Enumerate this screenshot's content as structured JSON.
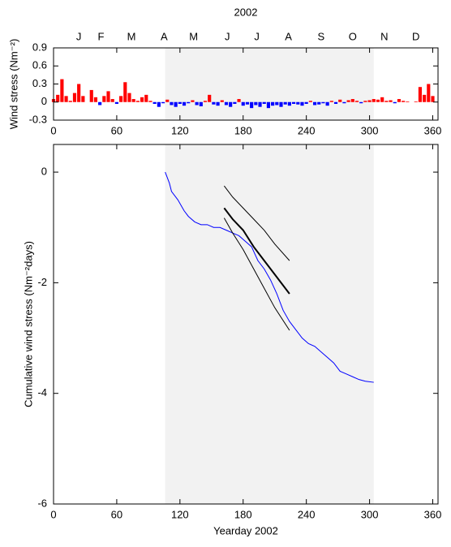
{
  "chart_data": [
    {
      "type": "bar",
      "title": "2002",
      "ylabel": "Wind stress (Nm⁻²)",
      "pos_color": "#ff0000",
      "neg_color": "#0000ff",
      "shade": [
        106,
        304
      ],
      "shade_color": "#f2f2f2",
      "xlim": [
        0,
        365
      ],
      "xticks": [
        0,
        60,
        120,
        180,
        240,
        300,
        360
      ],
      "ylim": [
        -0.3,
        0.9
      ],
      "yticks": [
        -0.3,
        0,
        0.3,
        0.6,
        0.9
      ],
      "month_ticks": [
        {
          "value": 24,
          "label": "J"
        },
        {
          "value": 45,
          "label": "F"
        },
        {
          "value": 74,
          "label": "M"
        },
        {
          "value": 105,
          "label": "A"
        },
        {
          "value": 133,
          "label": "M"
        },
        {
          "value": 165,
          "label": "J"
        },
        {
          "value": 193,
          "label": "J"
        },
        {
          "value": 223,
          "label": "A"
        },
        {
          "value": 254,
          "label": "S"
        },
        {
          "value": 284,
          "label": "O"
        },
        {
          "value": 314,
          "label": "N"
        },
        {
          "value": 344,
          "label": "D"
        }
      ],
      "x": [
        0,
        4,
        8,
        12,
        16,
        20,
        24,
        28,
        32,
        36,
        40,
        44,
        48,
        52,
        56,
        60,
        64,
        68,
        72,
        76,
        80,
        84,
        88,
        92,
        96,
        100,
        104,
        108,
        112,
        116,
        120,
        124,
        128,
        132,
        136,
        140,
        144,
        148,
        152,
        156,
        160,
        164,
        168,
        172,
        176,
        180,
        184,
        188,
        192,
        196,
        200,
        204,
        208,
        212,
        216,
        220,
        224,
        228,
        232,
        236,
        240,
        244,
        248,
        252,
        256,
        260,
        264,
        268,
        272,
        276,
        280,
        284,
        288,
        292,
        296,
        300,
        304,
        308,
        312,
        316,
        320,
        324,
        328,
        332,
        336,
        340,
        344,
        348,
        352,
        356,
        360
      ],
      "values": [
        0.05,
        0.12,
        0.38,
        0.1,
        0.02,
        0.15,
        0.3,
        0.1,
        0.0,
        0.2,
        0.08,
        -0.05,
        0.1,
        0.18,
        0.05,
        -0.03,
        0.1,
        0.33,
        0.15,
        0.05,
        0.02,
        0.08,
        0.12,
        0.02,
        -0.03,
        -0.08,
        -0.02,
        0.04,
        -0.05,
        -0.08,
        -0.03,
        -0.06,
        -0.02,
        0.03,
        -0.05,
        -0.07,
        0.02,
        0.12,
        -0.04,
        -0.06,
        0.03,
        -0.05,
        -0.08,
        -0.03,
        0.05,
        -0.06,
        -0.04,
        -0.1,
        -0.05,
        -0.08,
        -0.03,
        -0.1,
        -0.06,
        -0.05,
        -0.08,
        -0.04,
        -0.06,
        -0.03,
        -0.04,
        -0.06,
        -0.03,
        0.02,
        -0.05,
        -0.04,
        -0.02,
        -0.06,
        0.02,
        -0.03,
        0.04,
        -0.02,
        0.03,
        0.05,
        0.02,
        -0.02,
        0.02,
        0.03,
        0.05,
        0.04,
        0.08,
        0.02,
        0.03,
        -0.02,
        0.05,
        0.02,
        0.01,
        0.0,
        0.01,
        0.25,
        0.12,
        0.3,
        0.1
      ]
    },
    {
      "type": "line",
      "xlabel": "Yearday 2002",
      "ylabel": "Cumulative wind stress (Nm⁻²days)",
      "shade": [
        106,
        304
      ],
      "shade_color": "#f2f2f2",
      "xlim": [
        0,
        365
      ],
      "xticks": [
        0,
        60,
        120,
        180,
        240,
        300,
        360
      ],
      "ylim": [
        -6,
        0.5
      ],
      "yticks": [
        -6,
        -4,
        -2,
        0
      ],
      "series": [
        {
          "color": "#0000ff",
          "line_width": 1,
          "x": [
            106,
            110,
            112,
            118,
            124,
            128,
            134,
            140,
            146,
            152,
            158,
            164,
            170,
            176,
            182,
            188,
            194,
            200,
            206,
            212,
            218,
            224,
            230,
            236,
            242,
            248,
            254,
            260,
            266,
            272,
            278,
            284,
            290,
            296,
            304
          ],
          "values": [
            0,
            -0.2,
            -0.35,
            -0.5,
            -0.7,
            -0.8,
            -0.9,
            -0.95,
            -0.95,
            -1.0,
            -1.0,
            -1.05,
            -1.1,
            -1.15,
            -1.25,
            -1.35,
            -1.6,
            -1.75,
            -1.95,
            -2.2,
            -2.5,
            -2.7,
            -2.85,
            -3.0,
            -3.1,
            -3.15,
            -3.25,
            -3.35,
            -3.45,
            -3.6,
            -3.65,
            -3.7,
            -3.75,
            -3.78,
            -3.8
          ]
        },
        {
          "color": "#000000",
          "line_width": 1,
          "x": [
            162,
            170,
            180,
            190,
            200,
            210,
            224
          ],
          "values": [
            -0.25,
            -0.45,
            -0.65,
            -0.85,
            -1.05,
            -1.3,
            -1.6
          ]
        },
        {
          "color": "#000000",
          "line_width": 2,
          "x": [
            162,
            170,
            180,
            190,
            200,
            210,
            224
          ],
          "values": [
            -0.65,
            -0.85,
            -1.05,
            -1.35,
            -1.6,
            -1.85,
            -2.2
          ]
        },
        {
          "color": "#000000",
          "line_width": 1,
          "x": [
            162,
            170,
            180,
            190,
            200,
            210,
            224
          ],
          "values": [
            -0.83,
            -1.1,
            -1.4,
            -1.75,
            -2.1,
            -2.45,
            -2.86
          ]
        }
      ]
    }
  ]
}
